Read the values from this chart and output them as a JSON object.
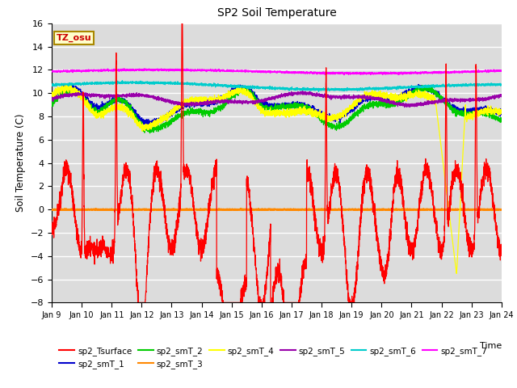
{
  "title": "SP2 Soil Temperature",
  "ylabel": "Soil Temperature (C)",
  "xlabel": "Time",
  "tz_label": "TZ_osu",
  "ylim": [
    -8,
    16
  ],
  "yticks": [
    -8,
    -6,
    -4,
    -2,
    0,
    2,
    4,
    6,
    8,
    10,
    12,
    14,
    16
  ],
  "x_labels": [
    "Jan 9",
    "Jan 10",
    "Jan 11",
    "Jan 12",
    "Jan 13",
    "Jan 14",
    "Jan 15",
    "Jan 16",
    "Jan 17",
    "Jan 18",
    "Jan 19",
    "Jan 20",
    "Jan 21",
    "Jan 22",
    "Jan 23",
    "Jan 24"
  ],
  "colors": {
    "sp2_Tsurface": "#ff0000",
    "sp2_smT_1": "#0000cc",
    "sp2_smT_2": "#00cc00",
    "sp2_smT_3": "#ff8800",
    "sp2_smT_4": "#ffff00",
    "sp2_smT_5": "#9900aa",
    "sp2_smT_6": "#00cccc",
    "sp2_smT_7": "#ff00ff"
  },
  "bg_color": "#dcdcdc",
  "grid_color": "#ffffff",
  "hline_color": "#ff8800",
  "hline_y": 0.0,
  "figwidth": 6.4,
  "figheight": 4.8,
  "dpi": 100
}
